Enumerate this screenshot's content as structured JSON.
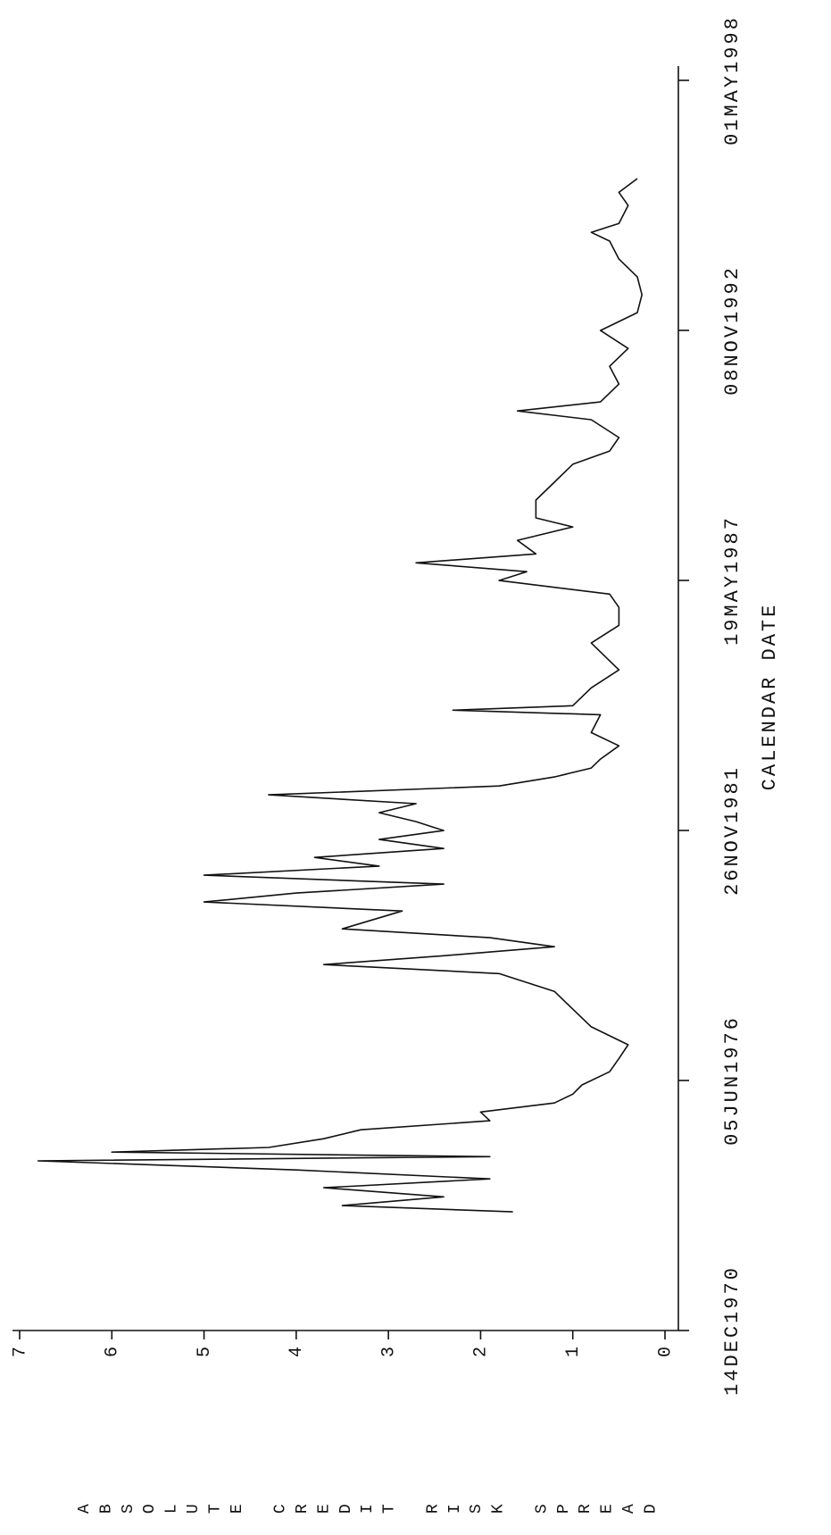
{
  "chart_data": {
    "type": "line",
    "y_label": "ABSOLUTE CREDIT RISK SPREAD",
    "x_label": "CALENDAR DATE",
    "xlim": [
      "1970-12-14",
      "1998-05-01"
    ],
    "xticks": [
      {
        "value": "1970-12-14",
        "label": "14DEC1970"
      },
      {
        "value": "1976-06-05",
        "label": "05JUN1976"
      },
      {
        "value": "1981-11-26",
        "label": "26NOV1981"
      },
      {
        "value": "1987-05-19",
        "label": "19MAY1987"
      },
      {
        "value": "1992-11-08",
        "label": "08NOV1992"
      },
      {
        "value": "1998-05-01",
        "label": "01MAY1998"
      }
    ],
    "ylim": [
      0,
      7
    ],
    "yticks": [
      0,
      1,
      2,
      3,
      4,
      5,
      6,
      7
    ],
    "color": "#111111",
    "x": [
      "1973-07-20",
      "1973-09-08",
      "1973-11-17",
      "1974-01-29",
      "1974-04-10",
      "1974-06-20",
      "1974-09-01",
      "1974-10-05",
      "1974-11-10",
      "1974-12-17",
      "1975-02-25",
      "1975-05-08",
      "1975-07-19",
      "1975-09-27",
      "1975-12-08",
      "1976-02-17",
      "1976-04-30",
      "1976-08-14",
      "1976-11-28",
      "1977-03-18",
      "1977-08-08",
      "1977-12-28",
      "1978-05-19",
      "1978-10-08",
      "1978-12-19",
      "1979-02-28",
      "1979-05-11",
      "1979-07-22",
      "1979-10-01",
      "1980-02-21",
      "1980-05-03",
      "1980-07-13",
      "1980-09-23",
      "1980-12-03",
      "1981-02-14",
      "1981-04-24",
      "1981-07-05",
      "1981-09-15",
      "1981-11-25",
      "1982-02-05",
      "1982-04-17",
      "1982-06-28",
      "1982-09-07",
      "1982-11-17",
      "1983-01-28",
      "1983-04-09",
      "1983-06-20",
      "1983-10-04",
      "1984-01-18",
      "1984-06-09",
      "1984-07-15",
      "1984-08-20",
      "1985-01-10",
      "1985-06-02",
      "1986-01-03",
      "1986-05-25",
      "1986-10-15",
      "1987-01-30",
      "1987-05-18",
      "1987-07-28",
      "1987-10-07",
      "1987-12-17",
      "1988-04-04",
      "1988-07-20",
      "1988-09-30",
      "1989-02-20",
      "1989-07-13",
      "1989-12-03",
      "1990-03-19",
      "1990-07-05",
      "1990-11-25",
      "1991-02-03",
      "1991-04-16",
      "1991-09-06",
      "1992-01-26",
      "1992-06-17",
      "1992-11-07",
      "1993-03-30",
      "1993-08-20",
      "1994-01-10",
      "1994-06-02",
      "1994-10-23",
      "1995-01-01",
      "1995-03-14",
      "1995-08-04",
      "1995-11-17",
      "1996-03-06"
    ],
    "values": [
      1.65,
      3.5,
      2.4,
      3.7,
      1.9,
      4.0,
      6.8,
      1.9,
      6.0,
      4.3,
      3.7,
      3.3,
      1.9,
      2.0,
      1.2,
      1.0,
      0.9,
      0.6,
      0.5,
      0.4,
      0.8,
      1.0,
      1.2,
      1.8,
      3.7,
      2.4,
      1.2,
      1.9,
      3.5,
      2.85,
      5.0,
      4.0,
      2.4,
      5.0,
      3.1,
      3.8,
      2.4,
      3.1,
      2.4,
      2.7,
      3.1,
      2.7,
      4.3,
      1.8,
      1.2,
      0.8,
      0.7,
      0.5,
      0.8,
      0.7,
      2.3,
      1.0,
      0.8,
      0.5,
      0.8,
      0.5,
      0.5,
      0.6,
      1.8,
      1.5,
      2.7,
      1.4,
      1.6,
      1.0,
      1.4,
      1.4,
      1.2,
      1.0,
      0.6,
      0.5,
      0.8,
      1.6,
      0.7,
      0.5,
      0.6,
      0.4,
      0.7,
      0.3,
      0.25,
      0.3,
      0.5,
      0.6,
      0.8,
      0.5,
      0.4,
      0.5,
      0.3
    ]
  }
}
